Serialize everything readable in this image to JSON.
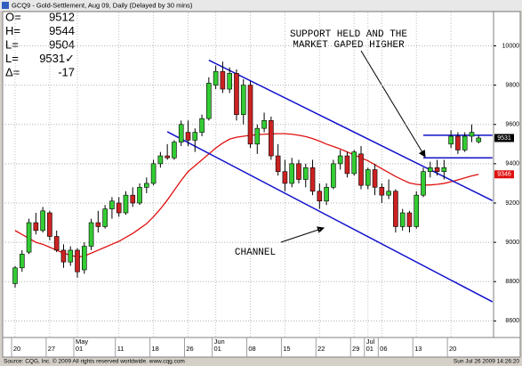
{
  "window_title": "GCQ9 - Gold-Settlement, Aug 09, Daily (Delayed by 30 mins)",
  "quote": [
    {
      "key": "O=",
      "value": "9512"
    },
    {
      "key": "H=",
      "value": "9544"
    },
    {
      "key": "L=",
      "value": "9504"
    },
    {
      "key": "L=",
      "value": "9531✓"
    },
    {
      "key": "Δ=",
      "value": "-17"
    }
  ],
  "chart_data": {
    "type": "candlestick",
    "categories": [
      "20",
      null,
      null,
      null,
      null,
      "27",
      null,
      null,
      null,
      "01",
      null,
      null,
      null,
      null,
      null,
      "11",
      null,
      null,
      null,
      null,
      "18",
      null,
      null,
      null,
      null,
      "26",
      null,
      null,
      null,
      "01",
      null,
      null,
      null,
      null,
      "08",
      null,
      null,
      null,
      null,
      "15",
      null,
      null,
      null,
      null,
      "22",
      null,
      null,
      null,
      null,
      "29",
      null,
      "01",
      null,
      "06",
      null,
      null,
      null,
      null,
      "13",
      null,
      null,
      null,
      null,
      "20",
      null,
      null,
      null,
      null
    ],
    "months": [
      null,
      null,
      null,
      null,
      null,
      null,
      null,
      null,
      null,
      "May",
      null,
      null,
      null,
      null,
      null,
      null,
      null,
      null,
      null,
      null,
      null,
      null,
      null,
      null,
      null,
      null,
      null,
      null,
      null,
      "Jun",
      null,
      null,
      null,
      null,
      null,
      null,
      null,
      null,
      null,
      null,
      null,
      null,
      null,
      null,
      null,
      null,
      null,
      null,
      null,
      null,
      null,
      "Jul",
      null,
      null,
      null,
      null,
      null,
      null,
      null,
      null,
      null,
      null,
      null,
      null,
      null,
      null,
      null,
      null
    ],
    "open": [
      8790,
      8870,
      8950,
      9100,
      9060,
      9150,
      9030,
      8960,
      8900,
      8960,
      8860,
      8980,
      9100,
      9080,
      9170,
      9200,
      9150,
      9240,
      9200,
      9280,
      9300,
      9400,
      9440,
      9430,
      9510,
      9560,
      9520,
      9560,
      9630,
      9800,
      9870,
      9780,
      9860,
      9650,
      9800,
      9500,
      9580,
      9620,
      9440,
      9360,
      9300,
      9400,
      9320,
      9380,
      9260,
      9210,
      9280,
      9400,
      9440,
      9350,
      9450,
      9290,
      9370,
      9280,
      9240,
      9260,
      9080,
      9150,
      9080,
      9240,
      9360,
      9380,
      9360,
      9500,
      9540,
      9470,
      9540,
      9512
    ],
    "high": [
      8880,
      8960,
      9120,
      9150,
      9180,
      9160,
      9060,
      8990,
      8980,
      8970,
      9000,
      9120,
      9160,
      9190,
      9230,
      9230,
      9260,
      9280,
      9300,
      9330,
      9420,
      9460,
      9500,
      9520,
      9620,
      9620,
      9580,
      9650,
      9840,
      9900,
      9920,
      9890,
      9880,
      9830,
      9820,
      9600,
      9660,
      9640,
      9500,
      9420,
      9430,
      9420,
      9400,
      9420,
      9300,
      9300,
      9420,
      9470,
      9460,
      9470,
      9490,
      9380,
      9400,
      9300,
      9320,
      9270,
      9170,
      9160,
      9260,
      9380,
      9410,
      9420,
      9420,
      9570,
      9560,
      9560,
      9600,
      9544
    ],
    "low": [
      8770,
      8850,
      8940,
      9040,
      9050,
      9010,
      8950,
      8870,
      8880,
      8820,
      8840,
      8960,
      9050,
      9070,
      9120,
      9130,
      9140,
      9180,
      9190,
      9250,
      9290,
      9380,
      9420,
      9420,
      9490,
      9490,
      9460,
      9540,
      9620,
      9780,
      9760,
      9760,
      9620,
      9600,
      9480,
      9450,
      9560,
      9420,
      9340,
      9260,
      9280,
      9300,
      9280,
      9240,
      9170,
      9190,
      9270,
      9370,
      9330,
      9340,
      9270,
      9270,
      9240,
      9200,
      9220,
      9050,
      9060,
      9050,
      9070,
      9230,
      9330,
      9340,
      9320,
      9480,
      9450,
      9460,
      9510,
      9504
    ],
    "close": [
      8870,
      8940,
      9100,
      9060,
      9160,
      9030,
      8960,
      8900,
      8960,
      8850,
      8980,
      9100,
      9080,
      9170,
      9210,
      9150,
      9240,
      9200,
      9280,
      9300,
      9400,
      9440,
      9430,
      9510,
      9600,
      9520,
      9560,
      9630,
      9810,
      9870,
      9780,
      9860,
      9650,
      9800,
      9500,
      9580,
      9620,
      9440,
      9360,
      9300,
      9400,
      9320,
      9380,
      9260,
      9210,
      9280,
      9400,
      9440,
      9350,
      9460,
      9290,
      9370,
      9280,
      9240,
      9260,
      9080,
      9150,
      9080,
      9240,
      9360,
      9380,
      9360,
      9380,
      9540,
      9470,
      9540,
      9560,
      9531
    ],
    "up_color": "#33cc33",
    "down_color": "#cc2222",
    "moving_average": {
      "color": "#e01010",
      "values": [
        9060,
        9040,
        9020,
        9000,
        8990,
        8975,
        8960,
        8945,
        8935,
        8925,
        8930,
        8945,
        8960,
        8975,
        8990,
        9005,
        9025,
        9045,
        9070,
        9095,
        9130,
        9170,
        9215,
        9265,
        9315,
        9360,
        9390,
        9420,
        9450,
        9480,
        9505,
        9525,
        9535,
        9540,
        9545,
        9548,
        9550,
        9552,
        9553,
        9553,
        9550,
        9545,
        9538,
        9528,
        9515,
        9500,
        9488,
        9475,
        9460,
        9445,
        9430,
        9415,
        9395,
        9375,
        9355,
        9335,
        9318,
        9302,
        9295,
        9292,
        9292,
        9295,
        9300,
        9308,
        9318,
        9328,
        9338,
        9346
      ]
    },
    "ylim": [
      8520,
      10170
    ],
    "yticks": [
      8600,
      8800,
      9000,
      9200,
      9400,
      9600,
      9800,
      10000
    ],
    "grid": true,
    "trendlines": [
      {
        "color": "#1010cc",
        "x": [
          28,
          69
        ],
        "y": [
          9927,
          9212
        ]
      },
      {
        "color": "#1010cc",
        "x": [
          22,
          69
        ],
        "y": [
          9563,
          8697
        ]
      },
      {
        "color": "#1010cc",
        "x": [
          59,
          69
        ],
        "y": [
          9430,
          9430
        ]
      },
      {
        "color": "#1010cc",
        "x": [
          59,
          69
        ],
        "y": [
          9545,
          9545
        ]
      }
    ],
    "price_tags": [
      {
        "value": 9531,
        "color": "#000000"
      },
      {
        "value": 9346,
        "color": "#e01010"
      }
    ],
    "annotations": [
      "SUPPORT HELD AND THE",
      "MARKET GAPED HIGHER",
      "CHANNEL"
    ]
  },
  "footer": {
    "source": "Source: CQG, Inc. © 2009 All rights reserved worldwide. www.cqg.com",
    "timestamp": "Sun Jul 26 2009 14:26:20"
  }
}
